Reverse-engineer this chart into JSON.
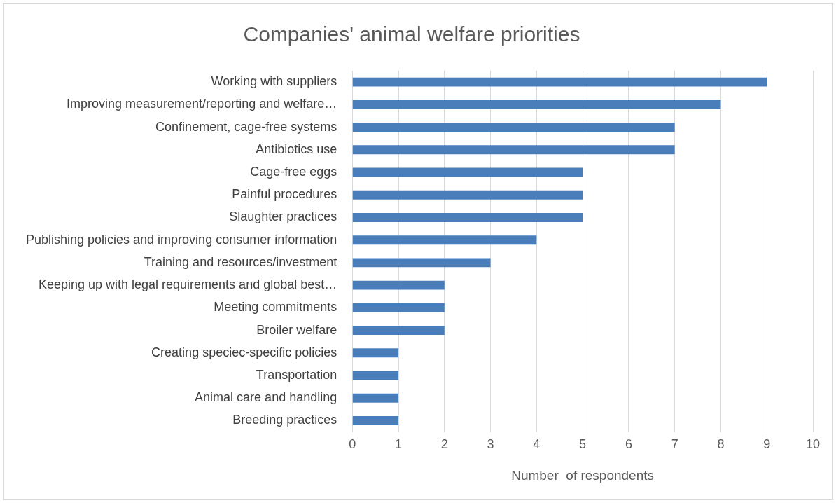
{
  "chart_data": {
    "type": "bar",
    "orientation": "horizontal",
    "title": "Companies' animal welfare priorities",
    "xlabel": "Number  of respondents",
    "categories": [
      "Working with suppliers",
      "Improving measurement/reporting and welfare…",
      "Confinement, cage-free systems",
      "Antibiotics use",
      "Cage-free eggs",
      "Painful procedures",
      "Slaughter practices",
      "Publishing policies and improving consumer information",
      "Training and resources/investment",
      "Keeping up with legal requirements and global best…",
      "Meeting commitments",
      "Broiler welfare",
      "Creating speciec-specific policies",
      "Transportation",
      "Animal care and handling",
      "Breeding practices"
    ],
    "values": [
      9,
      8,
      7,
      7,
      5,
      5,
      5,
      4,
      3,
      2,
      2,
      2,
      1,
      1,
      1,
      1
    ],
    "color": "#4a7ebb",
    "xlim": [
      0,
      10
    ],
    "xticks": [
      0,
      1,
      2,
      3,
      4,
      5,
      6,
      7,
      8,
      9,
      10
    ],
    "grid": "x"
  }
}
